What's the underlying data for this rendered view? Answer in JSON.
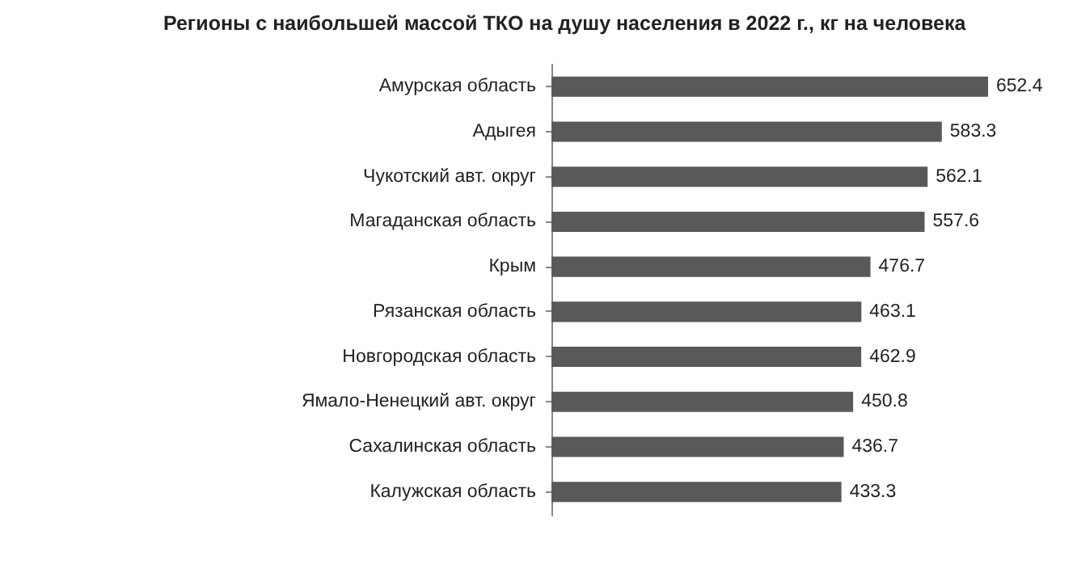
{
  "chart_data": {
    "type": "bar",
    "orientation": "horizontal",
    "title": "Регионы с наибольшей массой ТКО на душу населения в 2022 г., кг на человека",
    "categories": [
      "Амурская область",
      "Адыгея",
      "Чукотский авт. округ",
      "Магаданская область",
      "Крым",
      "Рязанская область",
      "Новгородская область",
      "Ямало-Ненецкий авт. округ",
      "Сахалинская область",
      "Калужская область"
    ],
    "values": [
      652.4,
      583.3,
      562.1,
      557.6,
      476.7,
      463.1,
      462.9,
      450.8,
      436.7,
      433.3
    ],
    "color": "#595959",
    "data_labels": true
  }
}
